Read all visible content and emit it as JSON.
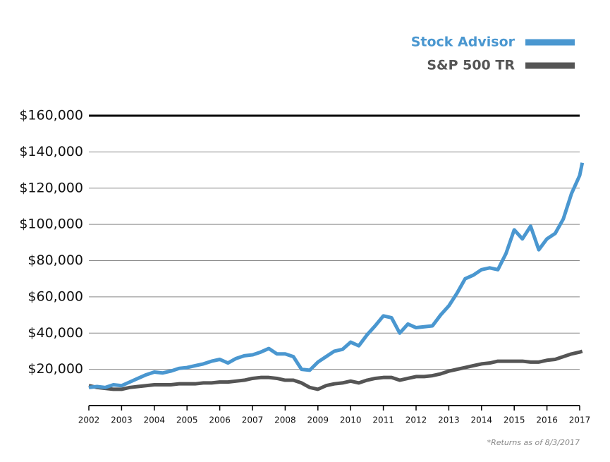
{
  "chart_data": {
    "type": "line",
    "x": [
      2002,
      2002.25,
      2002.5,
      2002.75,
      2003,
      2003.25,
      2003.5,
      2003.75,
      2004,
      2004.25,
      2004.5,
      2004.75,
      2005,
      2005.25,
      2005.5,
      2005.75,
      2006,
      2006.25,
      2006.5,
      2006.75,
      2007,
      2007.25,
      2007.5,
      2007.75,
      2008,
      2008.25,
      2008.5,
      2008.75,
      2009,
      2009.25,
      2009.5,
      2009.75,
      2010,
      2010.25,
      2010.5,
      2010.75,
      2011,
      2011.25,
      2011.5,
      2011.75,
      2012,
      2012.25,
      2012.5,
      2012.75,
      2013,
      2013.25,
      2013.5,
      2013.75,
      2014,
      2014.25,
      2014.5,
      2014.75,
      2015,
      2015.25,
      2015.5,
      2015.75,
      2016,
      2016.25,
      2016.5,
      2016.75,
      2017,
      2017.08
    ],
    "series": [
      {
        "name": "Stock Advisor",
        "color": "#4a97d0",
        "values": [
          10000,
          10500,
          10000,
          11500,
          11000,
          13000,
          15000,
          17000,
          18500,
          18000,
          19000,
          20500,
          21000,
          22000,
          23000,
          24500,
          25500,
          23500,
          26000,
          27500,
          28000,
          29500,
          31500,
          28500,
          28500,
          27000,
          20000,
          19500,
          24000,
          27000,
          30000,
          31000,
          35000,
          33000,
          39000,
          44000,
          49500,
          48500,
          40000,
          45000,
          43000,
          43500,
          44000,
          50000,
          55000,
          62000,
          70000,
          72000,
          75000,
          76000,
          75000,
          84000,
          97000,
          92000,
          99000,
          86000,
          92000,
          95000,
          103000,
          117000,
          127000,
          134000
        ]
      },
      {
        "name": "S&P 500 TR",
        "color": "#555555",
        "values": [
          11000,
          10000,
          9500,
          9000,
          9000,
          10000,
          10500,
          11000,
          11500,
          11500,
          11500,
          12000,
          12000,
          12000,
          12500,
          12500,
          13000,
          13000,
          13500,
          14000,
          15000,
          15500,
          15500,
          15000,
          14000,
          14000,
          12500,
          10000,
          9000,
          11000,
          12000,
          12500,
          13500,
          12500,
          14000,
          15000,
          15500,
          15500,
          14000,
          15000,
          16000,
          16000,
          16500,
          17500,
          19000,
          20000,
          21000,
          22000,
          23000,
          23500,
          24500,
          24500,
          24500,
          24500,
          24000,
          24000,
          25000,
          25500,
          27000,
          28500,
          29500,
          30000
        ]
      }
    ],
    "xlim": [
      2002,
      2017
    ],
    "xticks": [
      2002,
      2003,
      2004,
      2005,
      2006,
      2007,
      2008,
      2009,
      2010,
      2011,
      2012,
      2013,
      2014,
      2015,
      2016,
      2017
    ],
    "ylim": [
      0,
      160000
    ],
    "yticks": [
      {
        "value": 20000,
        "label": "$20,000"
      },
      {
        "value": 40000,
        "label": "$40,000"
      },
      {
        "value": 60000,
        "label": "$60,000"
      },
      {
        "value": 80000,
        "label": "$80,000"
      },
      {
        "value": 100000,
        "label": "$100,000"
      },
      {
        "value": 120000,
        "label": "$120,000"
      },
      {
        "value": 140000,
        "label": "$140,000"
      },
      {
        "value": 160000,
        "label": "$160,000"
      }
    ],
    "grid": true,
    "legend": "top-right",
    "annotation": "*Returns as of 8/3/2017"
  }
}
